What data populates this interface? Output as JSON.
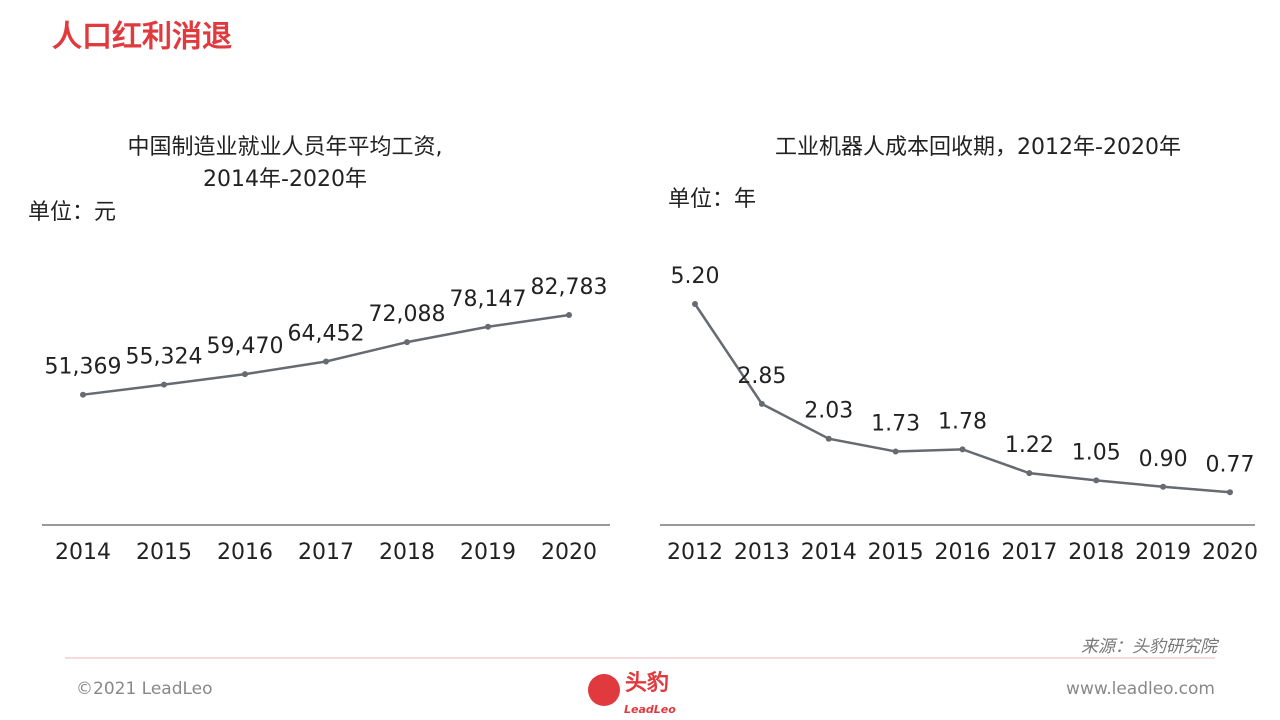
{
  "header": {
    "title": "人口红利消退"
  },
  "chart_data": [
    {
      "type": "line",
      "title": [
        "中国制造业就业人员年平均工资,",
        "2014年-2020年"
      ],
      "unit": "单位：元",
      "categories": [
        "2014",
        "2015",
        "2016",
        "2017",
        "2018",
        "2019",
        "2020"
      ],
      "values": [
        51369,
        55324,
        59470,
        64452,
        72088,
        78147,
        82783
      ],
      "value_labels": [
        "51,369",
        "55,324",
        "59,470",
        "64,452",
        "72,088",
        "78,147",
        "82,783"
      ],
      "color": "#656b70"
    },
    {
      "type": "line",
      "title": [
        "工业机器人成本回收期，2012年-2020年"
      ],
      "unit": "单位：年",
      "categories": [
        "2012",
        "2013",
        "2014",
        "2015",
        "2016",
        "2017",
        "2018",
        "2019",
        "2020"
      ],
      "values": [
        5.2,
        2.85,
        2.03,
        1.73,
        1.78,
        1.22,
        1.05,
        0.9,
        0.77
      ],
      "value_labels": [
        "5.20",
        "2.85",
        "2.03",
        "1.73",
        "1.78",
        "1.22",
        "1.05",
        "0.90",
        "0.77"
      ],
      "color": "#656b70"
    }
  ],
  "footer": {
    "source": "来源：头豹研究院",
    "copyright": "©2021 LeadLeo",
    "website": "www.leadleo.com",
    "logo_cn": "头豹",
    "logo_en": "LeadLeo"
  }
}
